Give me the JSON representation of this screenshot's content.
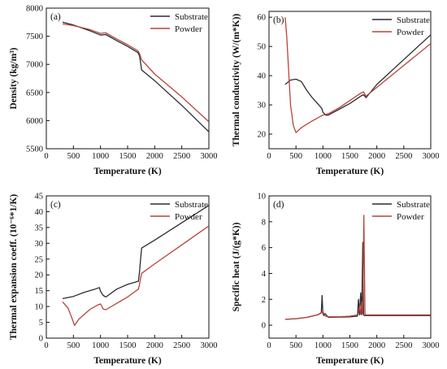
{
  "colors": {
    "substrate": "#2b2b33",
    "powder": "#b5453a",
    "axis": "#111111"
  },
  "chart_data": [
    {
      "type": "line",
      "panel_label": "(a)",
      "xlabel": "Temperature (K)",
      "ylabel": "Density (kg/m³)",
      "xlim": [
        0,
        3000
      ],
      "ylim": [
        5500,
        8000
      ],
      "xticks": [
        0,
        500,
        1000,
        1500,
        2000,
        2500,
        3000
      ],
      "yticks": [
        5500,
        6000,
        6500,
        7000,
        7500,
        8000
      ],
      "grid": false,
      "legend_position": "top-right",
      "series": [
        {
          "name": "Substrate",
          "color_key": "substrate",
          "x": [
            300,
            500,
            800,
            1000,
            1100,
            1300,
            1500,
            1690,
            1720,
            1760,
            2000,
            2500,
            3000
          ],
          "y": [
            7750,
            7700,
            7600,
            7520,
            7530,
            7420,
            7320,
            7210,
            7150,
            6900,
            6710,
            6270,
            5800
          ]
        },
        {
          "name": "Powder",
          "color_key": "powder",
          "x": [
            300,
            500,
            800,
            1000,
            1100,
            1300,
            1500,
            1690,
            1720,
            1760,
            2000,
            2500,
            3000
          ],
          "y": [
            7720,
            7690,
            7620,
            7550,
            7560,
            7450,
            7350,
            7240,
            7190,
            7080,
            6830,
            6420,
            5980
          ]
        }
      ]
    },
    {
      "type": "line",
      "panel_label": "(b)",
      "xlabel": "Temperature (K)",
      "ylabel": "Thermal conductivity (W/(m*K))",
      "xlim": [
        0,
        3000
      ],
      "ylim": [
        15,
        62
      ],
      "xticks": [
        0,
        500,
        1000,
        1500,
        2000,
        2500,
        3000
      ],
      "yticks": [
        20,
        30,
        40,
        50,
        60
      ],
      "grid": false,
      "legend_position": "top-right",
      "series": [
        {
          "name": "Substrate",
          "color_key": "substrate",
          "x": [
            300,
            400,
            500,
            600,
            700,
            800,
            900,
            980,
            1000,
            1050,
            1100,
            1300,
            1500,
            1700,
            1750,
            1800,
            2000,
            2500,
            3000
          ],
          "y": [
            37,
            38.5,
            38.8,
            38,
            35,
            32.5,
            30.5,
            28.8,
            27.5,
            26.5,
            26.5,
            28.5,
            30.5,
            33,
            33.5,
            32.5,
            37,
            45.5,
            54
          ]
        },
        {
          "name": "Powder",
          "color_key": "powder",
          "x": [
            300,
            330,
            370,
            400,
            450,
            500,
            600,
            800,
            1000,
            1100,
            1300,
            1500,
            1700,
            1750,
            1800,
            2000,
            2500,
            3000
          ],
          "y": [
            60,
            53,
            40,
            30,
            23,
            20.5,
            22.2,
            24.5,
            26.5,
            27,
            29,
            31.5,
            34,
            34.5,
            33,
            36,
            43.5,
            51
          ]
        }
      ]
    },
    {
      "type": "line",
      "panel_label": "(c)",
      "xlabel": "Temperature (K)",
      "ylabel": "Thermal expansion coeff. (10⁻⁶*1/K)",
      "xlim": [
        0,
        3000
      ],
      "ylim": [
        0,
        45
      ],
      "xticks": [
        0,
        500,
        1000,
        1500,
        2000,
        2500,
        3000
      ],
      "yticks": [
        0,
        5,
        10,
        15,
        20,
        25,
        30,
        35,
        40,
        45
      ],
      "grid": false,
      "legend_position": "top-right",
      "series": [
        {
          "name": "Substrate",
          "color_key": "substrate",
          "x": [
            300,
            500,
            700,
            900,
            980,
            1000,
            1050,
            1100,
            1300,
            1500,
            1700,
            1720,
            1740,
            1760,
            2000,
            2500,
            3000
          ],
          "y": [
            12.5,
            13.2,
            14.5,
            15.5,
            16,
            14.8,
            13.5,
            13,
            15.5,
            17,
            18,
            21,
            25,
            28.5,
            31,
            36.5,
            42
          ]
        },
        {
          "name": "Powder",
          "color_key": "powder",
          "x": [
            300,
            400,
            480,
            520,
            600,
            800,
            950,
            1000,
            1050,
            1100,
            1300,
            1500,
            1700,
            1720,
            1740,
            1760,
            2000,
            2500,
            3000
          ],
          "y": [
            11.5,
            9.5,
            6,
            4,
            6,
            9,
            10.5,
            10.8,
            9.2,
            9,
            11,
            13,
            15.5,
            17,
            19,
            20.5,
            23.5,
            29.5,
            35.5
          ]
        }
      ]
    },
    {
      "type": "line",
      "panel_label": "(d)",
      "xlabel": "Temperature (K)",
      "ylabel": "Specific heat  (J/(g*K))",
      "xlim": [
        0,
        3000
      ],
      "ylim": [
        -1,
        10
      ],
      "xticks": [
        0,
        500,
        1000,
        1500,
        2000,
        2500,
        3000
      ],
      "yticks": [
        0,
        2,
        4,
        6,
        8,
        10
      ],
      "grid": false,
      "legend_position": "top-right",
      "series": [
        {
          "name": "Substrate",
          "color_key": "substrate",
          "x": [
            300,
            500,
            700,
            900,
            970,
            985,
            1000,
            1015,
            1040,
            1100,
            1300,
            1500,
            1640,
            1660,
            1680,
            1700,
            1720,
            1740,
            1755,
            1770,
            1800,
            2000,
            2500,
            3000
          ],
          "y": [
            0.45,
            0.5,
            0.6,
            0.8,
            0.95,
            2.3,
            0.9,
            0.75,
            0.9,
            0.6,
            0.62,
            0.65,
            0.7,
            2,
            0.8,
            2.5,
            0.8,
            6.4,
            0.8,
            0.75,
            0.75,
            0.75,
            0.75,
            0.75
          ]
        },
        {
          "name": "Powder",
          "color_key": "powder",
          "x": [
            300,
            500,
            700,
            900,
            980,
            1000,
            1020,
            1050,
            1100,
            1300,
            1500,
            1650,
            1680,
            1700,
            1720,
            1740,
            1760,
            1780,
            1800,
            2000,
            2500,
            3000
          ],
          "y": [
            0.45,
            0.5,
            0.6,
            0.8,
            1.0,
            1.1,
            0.8,
            0.7,
            0.65,
            0.65,
            0.7,
            0.8,
            1.5,
            0.85,
            1.8,
            0.9,
            8.5,
            0.85,
            0.8,
            0.8,
            0.8,
            0.8
          ]
        }
      ]
    }
  ]
}
